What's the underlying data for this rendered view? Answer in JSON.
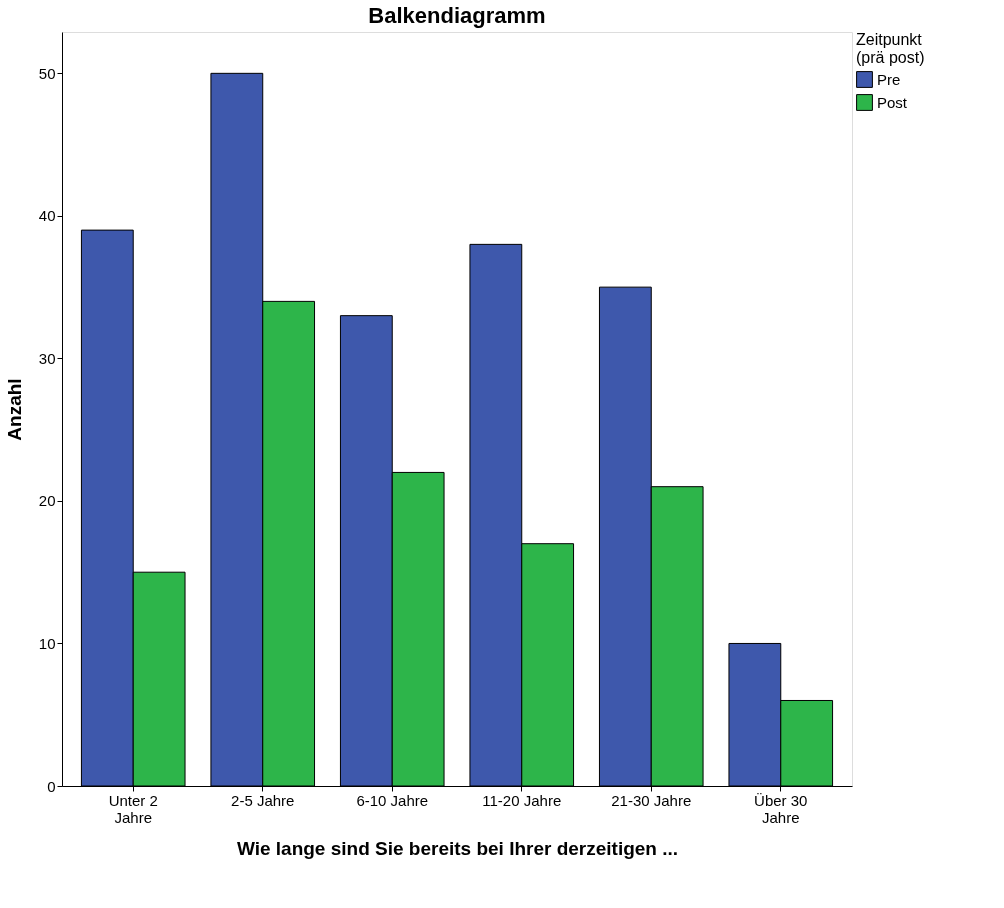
{
  "chart_data": {
    "type": "bar",
    "title": "Balkendiagramm",
    "xlabel": "Wie lange sind Sie bereits bei Ihrer derzeitigen ...",
    "ylabel": "Anzahl",
    "legend_title": "Zeitpunkt (prä post)",
    "categories": [
      "Unter 2 Jahre",
      "2-5 Jahre",
      "6-10 Jahre",
      "11-20 Jahre",
      "21-30 Jahre",
      "Über 30 Jahre"
    ],
    "series": [
      {
        "name": "Pre",
        "color": "#3e58ac",
        "values": [
          39,
          50,
          33,
          38,
          35,
          10
        ]
      },
      {
        "name": "Post",
        "color": "#2db54a",
        "values": [
          15,
          34,
          22,
          17,
          21,
          6
        ]
      }
    ],
    "ylim": [
      0,
      52.9
    ],
    "yticks": [
      0,
      10,
      20,
      30,
      40,
      50
    ],
    "grid": false,
    "legend": "top right"
  }
}
